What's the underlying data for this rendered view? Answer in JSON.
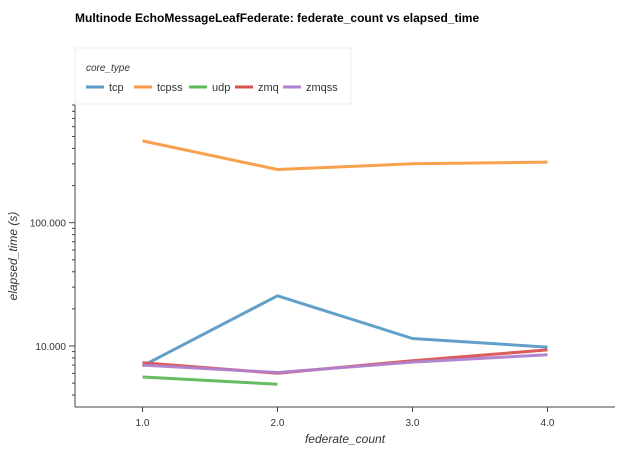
{
  "chart_data": {
    "type": "line",
    "title": "Multinode EchoMessageLeafFederate: federate_count vs elapsed_time",
    "xlabel": "federate_count",
    "ylabel": "elapsed_time (s)",
    "xscale": "linear",
    "yscale": "log",
    "xlim": [
      0.5,
      4.5
    ],
    "ylim": [
      3.2,
      900
    ],
    "x_ticks": [
      1.0,
      2.0,
      3.0,
      4.0
    ],
    "x_tick_labels": [
      "1.0",
      "2.0",
      "3.0",
      "4.0"
    ],
    "y_ticks": [
      10,
      100
    ],
    "y_tick_labels": [
      "10.000",
      "100.000"
    ],
    "legend": {
      "title": "core_type",
      "placement": "top-left",
      "orientation": "horizontal"
    },
    "grid": false,
    "series": [
      {
        "name": "tcp",
        "color": "#5a9bc6",
        "x": [
          1,
          2,
          3,
          4
        ],
        "y": [
          6.9,
          25.5,
          11.5,
          9.8
        ]
      },
      {
        "name": "tcpss",
        "color": "#f89b45",
        "x": [
          1,
          2,
          3,
          4
        ],
        "y": [
          460,
          270,
          300,
          310
        ]
      },
      {
        "name": "udp",
        "color": "#5db85b",
        "x": [
          1,
          2
        ],
        "y": [
          5.6,
          4.9
        ]
      },
      {
        "name": "zmq",
        "color": "#d9534f",
        "x": [
          1,
          2,
          3,
          4
        ],
        "y": [
          7.3,
          6.0,
          7.6,
          9.3
        ]
      },
      {
        "name": "zmqss",
        "color": "#b07fce",
        "x": [
          1,
          2,
          3,
          4
        ],
        "y": [
          7.0,
          6.1,
          7.4,
          8.5
        ]
      }
    ]
  }
}
